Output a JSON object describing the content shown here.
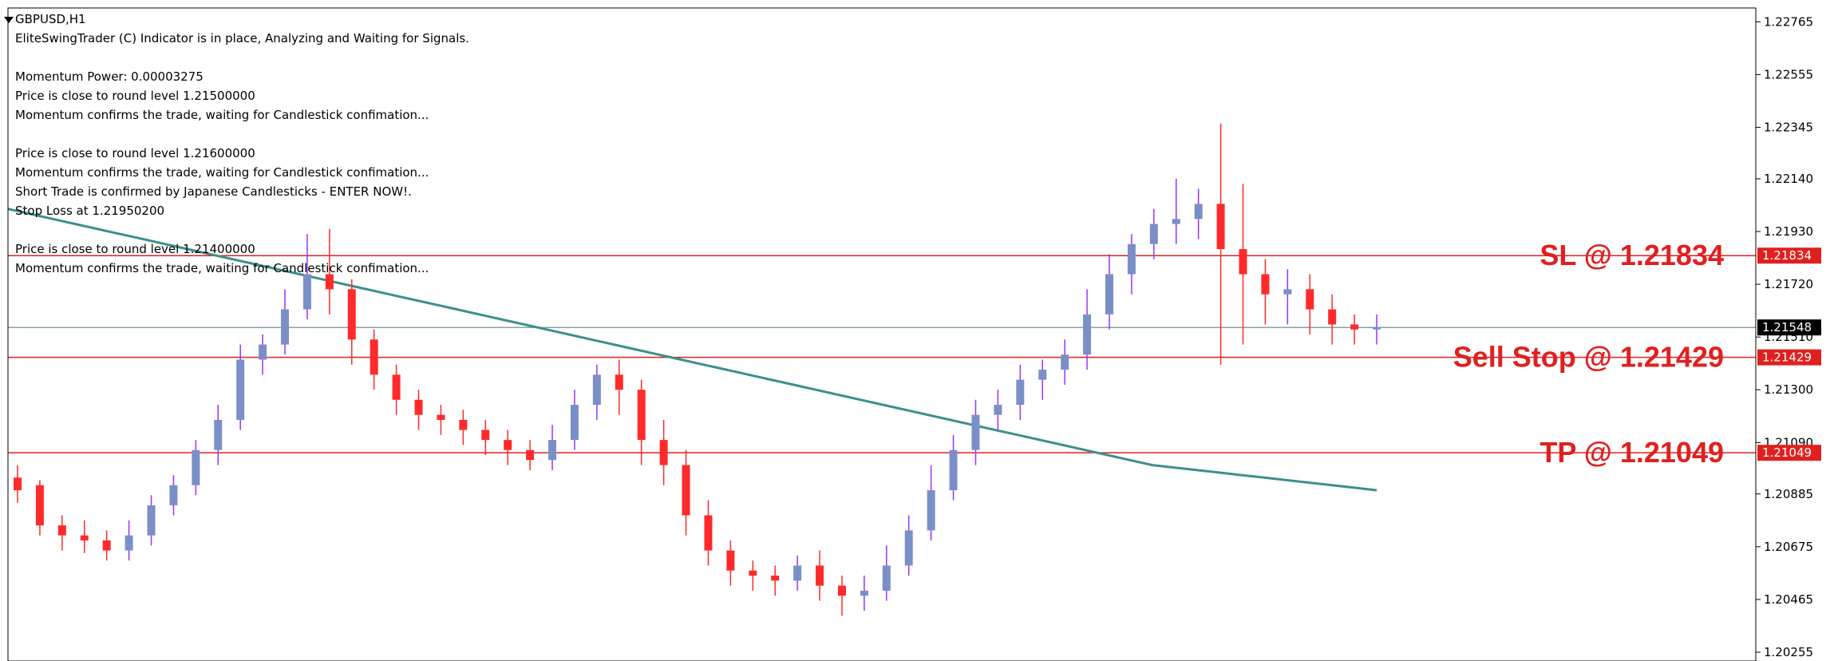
{
  "symbol": "GBPUSD,H1",
  "info_lines": [
    "EliteSwingTrader (C) Indicator is in place, Analyzing and Waiting for Signals.",
    "",
    "Momentum Power: 0.00003275",
    "Price is close to round level 1.21500000",
    "Momentum confirms the trade, waiting for Candlestick confimation...",
    "",
    "Price is close to round level 1.21600000",
    "Momentum confirms the trade, waiting for Candlestick confimation...",
    "Short Trade is confirmed by Japanese Candlesticks - ENTER NOW!.",
    "Stop Loss at 1.21950200",
    "",
    "Price is close to round level 1.21400000",
    "Momentum confirms the trade, waiting for Candlestick confimation..."
  ],
  "colors": {
    "bull": "#7b8fc7",
    "bear": "#ff2a2a",
    "wick_bull": "#9933ff",
    "wick_bear": "#ff2a2a",
    "ma": "#3e8f8c",
    "level_line": "#e02020",
    "bid_line": "#8aa0a0",
    "label_text": "#e02020"
  },
  "chart_data": {
    "type": "candlestick",
    "y_ticks": [
      "1.22765",
      "1.22555",
      "1.22345",
      "1.22140",
      "1.21930",
      "1.21720",
      "1.21510",
      "1.21300",
      "1.21090",
      "1.20885",
      "1.20675",
      "1.20465",
      "1.20255"
    ],
    "ylim": [
      1.2022,
      1.2282
    ],
    "levels": [
      {
        "name": "sl",
        "price": 1.21834,
        "tag": "1.21834",
        "label": "SL @ 1.21834"
      },
      {
        "name": "sell-stop",
        "price": 1.21429,
        "tag": "1.21429",
        "label": "Sell Stop @ 1.21429"
      },
      {
        "name": "tp",
        "price": 1.21049,
        "tag": "1.21049",
        "label": "TP @ 1.21049"
      }
    ],
    "bid": {
      "price": 1.21548,
      "tag": "1.21548"
    },
    "ma": [
      1.2202,
      1.22,
      1.2198,
      1.2196,
      1.2194,
      1.2192,
      1.219,
      1.2188,
      1.2186,
      1.2184,
      1.2182,
      1.218,
      1.2178,
      1.2176,
      1.2174,
      1.2172,
      1.217,
      1.2168,
      1.2166,
      1.2164,
      1.2162,
      1.216,
      1.2158,
      1.2156,
      1.2154,
      1.2152,
      1.215,
      1.2148,
      1.2146,
      1.2144,
      1.2142,
      1.214,
      1.2138,
      1.2136,
      1.2134,
      1.2132,
      1.213,
      1.2128,
      1.2126,
      1.2124,
      1.2122,
      1.212,
      1.2118,
      1.2116,
      1.2114,
      1.2112,
      1.211,
      1.2108,
      1.2106,
      1.2104,
      1.2102,
      1.21,
      1.2099,
      1.2098,
      1.2097,
      1.2096,
      1.2095,
      1.2094,
      1.2093,
      1.2092,
      1.2091,
      1.209
    ],
    "candles": [
      [
        1.2095,
        1.209,
        1.21,
        1.2085
      ],
      [
        1.2092,
        1.2076,
        1.2094,
        1.2072
      ],
      [
        1.2076,
        1.2072,
        1.208,
        1.2066
      ],
      [
        1.2072,
        1.207,
        1.2078,
        1.2065
      ],
      [
        1.207,
        1.2066,
        1.2074,
        1.2062
      ],
      [
        1.2066,
        1.2072,
        1.2078,
        1.2062
      ],
      [
        1.2072,
        1.2084,
        1.2088,
        1.2068
      ],
      [
        1.2084,
        1.2092,
        1.2096,
        1.208
      ],
      [
        1.2092,
        1.2106,
        1.211,
        1.2088
      ],
      [
        1.2106,
        1.2118,
        1.2124,
        1.21
      ],
      [
        1.2118,
        1.2142,
        1.2148,
        1.2114
      ],
      [
        1.2142,
        1.2148,
        1.2152,
        1.2136
      ],
      [
        1.2148,
        1.2162,
        1.217,
        1.2144
      ],
      [
        1.2162,
        1.2176,
        1.2192,
        1.2158
      ],
      [
        1.2176,
        1.217,
        1.2194,
        1.216
      ],
      [
        1.217,
        1.215,
        1.2174,
        1.214
      ],
      [
        1.215,
        1.2136,
        1.2154,
        1.213
      ],
      [
        1.2136,
        1.2126,
        1.214,
        1.212
      ],
      [
        1.2126,
        1.212,
        1.213,
        1.2114
      ],
      [
        1.212,
        1.2118,
        1.2124,
        1.2112
      ],
      [
        1.2118,
        1.2114,
        1.2122,
        1.2108
      ],
      [
        1.2114,
        1.211,
        1.2118,
        1.2104
      ],
      [
        1.211,
        1.2106,
        1.2114,
        1.21
      ],
      [
        1.2106,
        1.2102,
        1.211,
        1.2098
      ],
      [
        1.2102,
        1.211,
        1.2116,
        1.2098
      ],
      [
        1.211,
        1.2124,
        1.213,
        1.2106
      ],
      [
        1.2124,
        1.2136,
        1.214,
        1.2118
      ],
      [
        1.2136,
        1.213,
        1.2142,
        1.212
      ],
      [
        1.213,
        1.211,
        1.2134,
        1.21
      ],
      [
        1.211,
        1.21,
        1.2118,
        1.2092
      ],
      [
        1.21,
        1.208,
        1.2106,
        1.2072
      ],
      [
        1.208,
        1.2066,
        1.2086,
        1.206
      ],
      [
        1.2066,
        1.2058,
        1.207,
        1.2052
      ],
      [
        1.2058,
        1.2056,
        1.2062,
        1.205
      ],
      [
        1.2056,
        1.2054,
        1.206,
        1.2048
      ],
      [
        1.2054,
        1.206,
        1.2064,
        1.205
      ],
      [
        1.206,
        1.2052,
        1.2066,
        1.2046
      ],
      [
        1.2052,
        1.2048,
        1.2056,
        1.204
      ],
      [
        1.2048,
        1.205,
        1.2056,
        1.2042
      ],
      [
        1.205,
        1.206,
        1.2068,
        1.2046
      ],
      [
        1.206,
        1.2074,
        1.208,
        1.2056
      ],
      [
        1.2074,
        1.209,
        1.21,
        1.207
      ],
      [
        1.209,
        1.2106,
        1.2112,
        1.2086
      ],
      [
        1.2106,
        1.212,
        1.2126,
        1.21
      ],
      [
        1.212,
        1.2124,
        1.213,
        1.2114
      ],
      [
        1.2124,
        1.2134,
        1.214,
        1.2118
      ],
      [
        1.2134,
        1.2138,
        1.2142,
        1.2126
      ],
      [
        1.2138,
        1.2144,
        1.215,
        1.2132
      ],
      [
        1.2144,
        1.216,
        1.217,
        1.2138
      ],
      [
        1.216,
        1.2176,
        1.2184,
        1.2154
      ],
      [
        1.2176,
        1.2188,
        1.2192,
        1.2168
      ],
      [
        1.2188,
        1.2196,
        1.2202,
        1.2182
      ],
      [
        1.2196,
        1.2198,
        1.2214,
        1.2188
      ],
      [
        1.2198,
        1.2204,
        1.221,
        1.219
      ],
      [
        1.2204,
        1.2186,
        1.2236,
        1.214
      ],
      [
        1.2186,
        1.2176,
        1.2212,
        1.2148
      ],
      [
        1.2176,
        1.2168,
        1.2182,
        1.2156
      ],
      [
        1.2168,
        1.217,
        1.2178,
        1.2156
      ],
      [
        1.217,
        1.2162,
        1.2176,
        1.2152
      ],
      [
        1.2162,
        1.2156,
        1.2168,
        1.2148
      ],
      [
        1.2156,
        1.2154,
        1.216,
        1.2148
      ],
      [
        1.2154,
        1.2155,
        1.216,
        1.2148
      ]
    ]
  }
}
